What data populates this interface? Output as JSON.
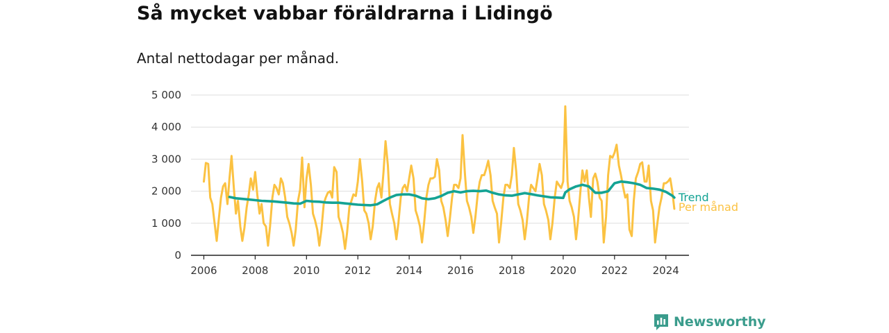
{
  "title": "Så mycket vabbar föräldrarna i Lidingö",
  "subtitle": "Antal nettodagar per månad.",
  "brand": {
    "name": "Newsworthy"
  },
  "colors": {
    "trend": "#14a394",
    "monthly": "#fbc242",
    "grid": "#dddddd",
    "axis": "#222222",
    "brand": "#3a9c8c"
  },
  "chart_data": {
    "type": "line",
    "ylim": [
      0,
      5000
    ],
    "xlim": [
      2005.5,
      2024.9
    ],
    "yticks": [
      0,
      1000,
      2000,
      3000,
      4000,
      5000
    ],
    "ytick_labels": [
      "0",
      "1 000",
      "2 000",
      "3 000",
      "4 000",
      "5 000"
    ],
    "xticks": [
      2006,
      2008,
      2010,
      2012,
      2014,
      2016,
      2018,
      2020,
      2022,
      2024
    ],
    "xtick_labels": [
      "2006",
      "2008",
      "2010",
      "2012",
      "2014",
      "2016",
      "2018",
      "2020",
      "2022",
      "2024"
    ],
    "grid": true,
    "legend": "inline labels at right end of series",
    "series": [
      {
        "name": "Per månad",
        "color": "#fbc242",
        "x": [
          2006.0,
          2006.08,
          2006.17,
          2006.25,
          2006.33,
          2006.42,
          2006.5,
          2006.58,
          2006.67,
          2006.75,
          2006.83,
          2006.92,
          2007.0,
          2007.08,
          2007.17,
          2007.25,
          2007.33,
          2007.42,
          2007.5,
          2007.58,
          2007.67,
          2007.75,
          2007.83,
          2007.92,
          2008.0,
          2008.08,
          2008.17,
          2008.25,
          2008.33,
          2008.42,
          2008.5,
          2008.58,
          2008.67,
          2008.75,
          2008.83,
          2008.92,
          2009.0,
          2009.08,
          2009.17,
          2009.25,
          2009.33,
          2009.42,
          2009.5,
          2009.58,
          2009.67,
          2009.75,
          2009.83,
          2009.92,
          2010.0,
          2010.08,
          2010.17,
          2010.25,
          2010.33,
          2010.42,
          2010.5,
          2010.58,
          2010.67,
          2010.75,
          2010.83,
          2010.92,
          2011.0,
          2011.08,
          2011.17,
          2011.25,
          2011.33,
          2011.42,
          2011.5,
          2011.58,
          2011.67,
          2011.75,
          2011.83,
          2011.92,
          2012.0,
          2012.08,
          2012.17,
          2012.25,
          2012.33,
          2012.42,
          2012.5,
          2012.58,
          2012.67,
          2012.75,
          2012.83,
          2012.92,
          2013.0,
          2013.08,
          2013.17,
          2013.25,
          2013.33,
          2013.42,
          2013.5,
          2013.58,
          2013.67,
          2013.75,
          2013.83,
          2013.92,
          2014.0,
          2014.08,
          2014.17,
          2014.25,
          2014.33,
          2014.42,
          2014.5,
          2014.58,
          2014.67,
          2014.75,
          2014.83,
          2014.92,
          2015.0,
          2015.08,
          2015.17,
          2015.25,
          2015.33,
          2015.42,
          2015.5,
          2015.58,
          2015.67,
          2015.75,
          2015.83,
          2015.92,
          2016.0,
          2016.08,
          2016.17,
          2016.25,
          2016.33,
          2016.42,
          2016.5,
          2016.58,
          2016.67,
          2016.75,
          2016.83,
          2016.92,
          2017.0,
          2017.08,
          2017.17,
          2017.25,
          2017.33,
          2017.42,
          2017.5,
          2017.58,
          2017.67,
          2017.75,
          2017.83,
          2017.92,
          2018.0,
          2018.08,
          2018.17,
          2018.25,
          2018.33,
          2018.42,
          2018.5,
          2018.58,
          2018.67,
          2018.75,
          2018.83,
          2018.92,
          2019.0,
          2019.08,
          2019.17,
          2019.25,
          2019.33,
          2019.42,
          2019.5,
          2019.58,
          2019.67,
          2019.75,
          2019.83,
          2019.92,
          2020.0,
          2020.08,
          2020.17,
          2020.25,
          2020.33,
          2020.42,
          2020.5,
          2020.58,
          2020.67,
          2020.75,
          2020.83,
          2020.92,
          2021.0,
          2021.08,
          2021.17,
          2021.25,
          2021.33,
          2021.42,
          2021.5,
          2021.58,
          2021.67,
          2021.75,
          2021.83,
          2021.92,
          2022.0,
          2022.08,
          2022.17,
          2022.25,
          2022.33,
          2022.42,
          2022.5,
          2022.58,
          2022.67,
          2022.75,
          2022.83,
          2022.92,
          2023.0,
          2023.08,
          2023.17,
          2023.25,
          2023.33,
          2023.42,
          2023.5,
          2023.58,
          2023.67,
          2023.75,
          2023.83,
          2023.92,
          2024.0,
          2024.08,
          2024.17,
          2024.25,
          2024.33
        ],
        "y": [
          2300,
          2880,
          2850,
          1800,
          1600,
          1000,
          450,
          1100,
          1800,
          2150,
          2250,
          1600,
          2400,
          3100,
          2100,
          1300,
          1700,
          900,
          450,
          850,
          1500,
          1900,
          2400,
          2050,
          2600,
          1900,
          1300,
          1600,
          1000,
          900,
          300,
          900,
          1800,
          2200,
          2100,
          1900,
          2400,
          2250,
          1800,
          1200,
          1000,
          700,
          300,
          800,
          1700,
          2050,
          3050,
          1500,
          2400,
          2850,
          2200,
          1300,
          1100,
          800,
          300,
          800,
          1600,
          1800,
          1950,
          2000,
          1800,
          2750,
          2600,
          1200,
          1000,
          700,
          200,
          700,
          1500,
          1700,
          1900,
          1850,
          2300,
          3000,
          2300,
          1400,
          1300,
          1000,
          500,
          900,
          1700,
          2100,
          2250,
          1800,
          2600,
          3560,
          2800,
          1600,
          1300,
          1000,
          500,
          1000,
          1800,
          2100,
          2200,
          2000,
          2400,
          2800,
          2400,
          1400,
          1200,
          900,
          400,
          1000,
          1800,
          2200,
          2400,
          2400,
          2450,
          3000,
          2650,
          1700,
          1500,
          1100,
          600,
          1100,
          1800,
          2200,
          2200,
          2100,
          2400,
          3750,
          2550,
          1700,
          1500,
          1200,
          700,
          1200,
          1900,
          2300,
          2500,
          2500,
          2700,
          2950,
          2500,
          1700,
          1500,
          1300,
          400,
          1000,
          1800,
          2200,
          2200,
          2100,
          2500,
          3350,
          2600,
          1600,
          1400,
          1100,
          500,
          1000,
          1800,
          2200,
          2100,
          2000,
          2400,
          2850,
          2500,
          1600,
          1400,
          1100,
          500,
          1000,
          1800,
          2300,
          2200,
          2100,
          2300,
          4650,
          2300,
          1700,
          1500,
          1200,
          500,
          1100,
          2000,
          2650,
          2300,
          2650,
          1800,
          1200,
          2400,
          2550,
          2300,
          1800,
          1700,
          400,
          1200,
          2500,
          3100,
          3050,
          3200,
          3450,
          2800,
          2500,
          2150,
          1800,
          1900,
          800,
          600,
          1700,
          2400,
          2600,
          2850,
          2900,
          2300,
          2300,
          2800,
          1700,
          1400,
          400,
          1000,
          1500,
          1800,
          2250,
          2250,
          2300,
          2400,
          2000,
          1450
        ]
      },
      {
        "name": "Trend",
        "color": "#14a394",
        "x": [
          2007.0,
          2007.25,
          2007.5,
          2007.75,
          2008.0,
          2008.25,
          2008.5,
          2008.75,
          2009.0,
          2009.25,
          2009.5,
          2009.75,
          2010.0,
          2010.25,
          2010.5,
          2010.75,
          2011.0,
          2011.25,
          2011.5,
          2011.75,
          2012.0,
          2012.25,
          2012.5,
          2012.75,
          2013.0,
          2013.25,
          2013.5,
          2013.75,
          2014.0,
          2014.25,
          2014.5,
          2014.75,
          2015.0,
          2015.25,
          2015.5,
          2015.75,
          2016.0,
          2016.25,
          2016.5,
          2016.75,
          2017.0,
          2017.25,
          2017.5,
          2017.75,
          2018.0,
          2018.25,
          2018.5,
          2018.75,
          2019.0,
          2019.25,
          2019.5,
          2019.75,
          2020.0,
          2020.08,
          2020.25,
          2020.5,
          2020.75,
          2021.0,
          2021.25,
          2021.5,
          2021.75,
          2022.0,
          2022.25,
          2022.5,
          2022.75,
          2023.0,
          2023.25,
          2023.5,
          2023.75,
          2024.0,
          2024.25,
          2024.33
        ],
        "y": [
          1820,
          1780,
          1760,
          1740,
          1720,
          1700,
          1690,
          1680,
          1660,
          1640,
          1620,
          1610,
          1700,
          1680,
          1670,
          1650,
          1640,
          1640,
          1620,
          1600,
          1580,
          1570,
          1560,
          1590,
          1700,
          1800,
          1880,
          1900,
          1900,
          1860,
          1780,
          1750,
          1780,
          1850,
          1950,
          2000,
          1960,
          2000,
          2010,
          2000,
          2020,
          1950,
          1900,
          1870,
          1860,
          1900,
          1940,
          1910,
          1870,
          1840,
          1810,
          1800,
          1790,
          1960,
          2060,
          2150,
          2200,
          2150,
          1950,
          1950,
          2000,
          2250,
          2300,
          2280,
          2250,
          2200,
          2100,
          2080,
          2050,
          1980,
          1860,
          1800
        ]
      }
    ]
  }
}
